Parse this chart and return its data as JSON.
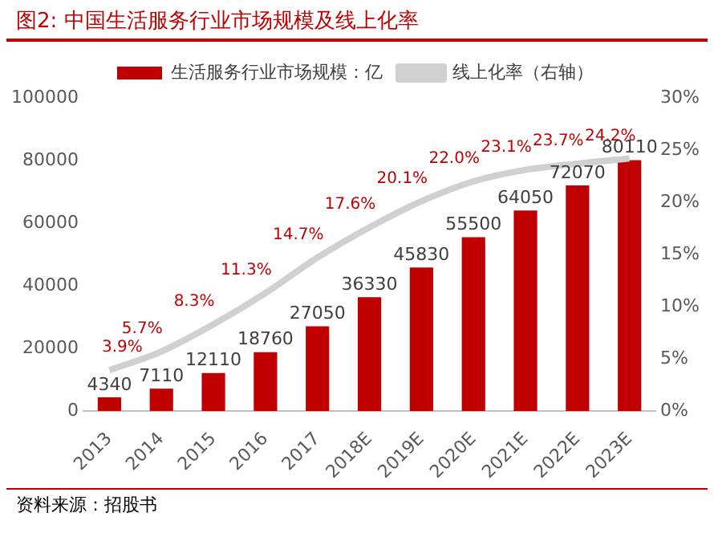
{
  "chart_data": {
    "type": "bar",
    "title": "图2:    中国生活服务行业市场规模及线上化率",
    "categories": [
      "2013",
      "2014",
      "2015",
      "2016",
      "2017",
      "2018E",
      "2019E",
      "2020E",
      "2021E",
      "2022E",
      "2023E"
    ],
    "series": [
      {
        "name": "生活服务行业市场规模：亿",
        "color": "#c00000",
        "values": [
          4340,
          7110,
          12110,
          18760,
          27050,
          36330,
          45830,
          55500,
          64050,
          72070,
          80110
        ],
        "value_labels": [
          "4340",
          "7110",
          "12110",
          "18760",
          "27050",
          "36330",
          "45830",
          "55500",
          "64050",
          "72070",
          "80110"
        ]
      },
      {
        "name": "线上化率（右轴）",
        "type": "line",
        "axis": "y2",
        "color": "#d0d0d0",
        "values": [
          3.9,
          5.7,
          8.3,
          11.3,
          14.7,
          17.6,
          20.1,
          22.0,
          23.1,
          23.7,
          24.2
        ],
        "value_labels": [
          "3.9%",
          "5.7%",
          "8.3%",
          "11.3%",
          "14.7%",
          "17.6%",
          "20.1%",
          "22.0%",
          "23.1%",
          "23.7%",
          "24.2%"
        ]
      }
    ],
    "ylim": [
      0,
      100000
    ],
    "yticks": [
      0,
      20000,
      40000,
      60000,
      80000,
      100000
    ],
    "y2lim": [
      0,
      30
    ],
    "y2ticks": [
      {
        "value": 0,
        "label": "0%"
      },
      {
        "value": 5,
        "label": "5%"
      },
      {
        "value": 10,
        "label": "10%"
      },
      {
        "value": 15,
        "label": "15%"
      },
      {
        "value": 20,
        "label": "20%"
      },
      {
        "value": 25,
        "label": "25%"
      },
      {
        "value": 30,
        "label": "30%"
      }
    ],
    "legend": "top",
    "grid": false,
    "marker": "none",
    "annotations": [
      "资料来源：招股书"
    ]
  }
}
